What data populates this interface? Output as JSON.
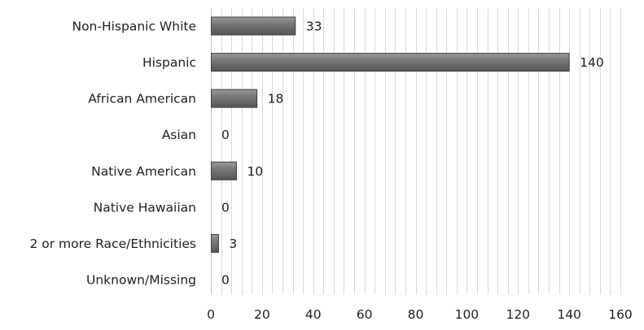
{
  "chart_data": {
    "type": "bar",
    "orientation": "horizontal",
    "categories": [
      "Non-Hispanic White",
      "Hispanic",
      "African American",
      "Asian",
      "Native American",
      "Native Hawaiian",
      "2 or more Race/Ethnicities",
      "Unknown/Missing"
    ],
    "values": [
      33,
      140,
      18,
      0,
      10,
      0,
      3,
      0
    ],
    "data_labels": [
      "33",
      "140",
      "18",
      "0",
      "10",
      "0",
      "3",
      "0"
    ],
    "x_ticks": [
      0,
      20,
      40,
      60,
      80,
      100,
      120,
      140,
      160
    ],
    "x_tick_labels": [
      "0",
      "20",
      "40",
      "60",
      "80",
      "100",
      "120",
      "140",
      "160"
    ],
    "xlim": [
      0,
      160
    ],
    "minor_grid_step": 4,
    "grid": true,
    "title": "",
    "xlabel": "",
    "ylabel": "",
    "colors": {
      "bar_light": "#9a9a9a",
      "bar_mid": "#7a7a7a",
      "bar_dark": "#555555",
      "bar_edge": "#3f3f3f",
      "grid": "#d9d9d9",
      "axis": "#bfbfbf",
      "text": "#1f1f1f"
    }
  }
}
